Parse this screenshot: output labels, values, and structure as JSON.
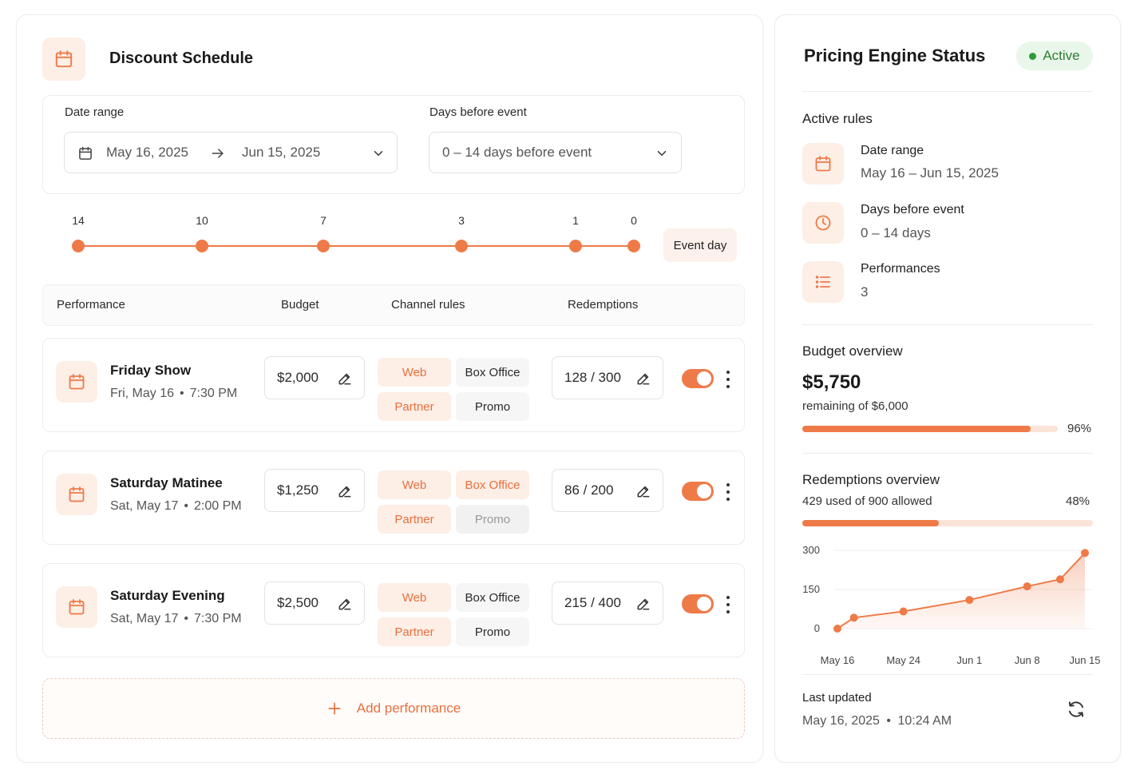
{
  "schedule": {
    "title": "Discount Schedule",
    "date_range_label": "Date range",
    "date_start": "May 16, 2025",
    "date_end": "Jun 15, 2025",
    "days_label": "Days before event",
    "days_value": "0 – 14 days before event"
  },
  "timeline": {
    "points": [
      "14",
      "10",
      "7",
      "3",
      "1",
      "0"
    ],
    "event_day": "Event day"
  },
  "table": {
    "headers": {
      "performance": "Performance",
      "budget": "Budget",
      "channel": "Channel rules",
      "redemptions": "Redemptions"
    },
    "rows": [
      {
        "name": "Friday Show",
        "date": "Fri, May 16",
        "time": "7:30 PM",
        "budget": "$2,000",
        "redemptions": "128 / 300",
        "channels": [
          {
            "label": "Web",
            "state": "on"
          },
          {
            "label": "Box Office",
            "state": "off"
          },
          {
            "label": "Partner",
            "state": "on"
          },
          {
            "label": "Promo",
            "state": "off"
          }
        ],
        "enabled": true
      },
      {
        "name": "Saturday Matinee",
        "date": "Sat, May 17",
        "time": "2:00 PM",
        "budget": "$1,250",
        "redemptions": "86 / 200",
        "channels": [
          {
            "label": "Web",
            "state": "on"
          },
          {
            "label": "Box Office",
            "state": "on"
          },
          {
            "label": "Partner",
            "state": "on"
          },
          {
            "label": "Promo",
            "state": "dis"
          }
        ],
        "enabled": true
      },
      {
        "name": "Saturday Evening",
        "date": "Sat, May 17",
        "time": "7:30 PM",
        "budget": "$2,500",
        "redemptions": "215 / 400",
        "channels": [
          {
            "label": "Web",
            "state": "on"
          },
          {
            "label": "Box Office",
            "state": "off"
          },
          {
            "label": "Partner",
            "state": "on"
          },
          {
            "label": "Promo",
            "state": "off"
          }
        ],
        "enabled": true
      }
    ],
    "add_label": "Add performance"
  },
  "status": {
    "title": "Pricing Engine Status",
    "badge": "Active",
    "active_rules_label": "Active rules",
    "rules": [
      {
        "label": "Date range",
        "value": "May 16 – Jun 15, 2025",
        "icon": "calendar-icon"
      },
      {
        "label": "Days before event",
        "value": "0 – 14 days",
        "icon": "clock-icon"
      },
      {
        "label": "Performances",
        "value": "3",
        "icon": "list-icon"
      }
    ],
    "budget_label": "Budget overview",
    "budget_amount": "$5,750",
    "budget_sub": "remaining of $6,000",
    "budget_pct": "96%",
    "budget_fraction": 0.96,
    "redemptions_label": "Redemptions overview",
    "redemptions_sub": "429 used of 900 allowed",
    "redemptions_pct": "48%",
    "redemptions_fraction": 0.48,
    "last_updated_label": "Last updated",
    "last_updated_date": "May 16, 2025",
    "last_updated_time": "10:24 AM"
  },
  "chart_data": {
    "type": "area",
    "x": [
      "May 16",
      "May 18",
      "May 24",
      "Jun 1",
      "Jun 8",
      "Jun 12",
      "Jun 15"
    ],
    "values": [
      0,
      42,
      66,
      110,
      162,
      189,
      290
    ],
    "xtick_labels": [
      "May 16",
      "May 24",
      "Jun 1",
      "Jun 8",
      "Jun 15"
    ],
    "ytick_labels": [
      "300",
      "150",
      "0"
    ],
    "ylim": [
      0,
      300
    ],
    "grid": true,
    "color": "#ee7a48"
  },
  "colors": {
    "accent": "#ee7a48",
    "accent_soft": "#fdeee6",
    "active": "#2e9b3a"
  }
}
